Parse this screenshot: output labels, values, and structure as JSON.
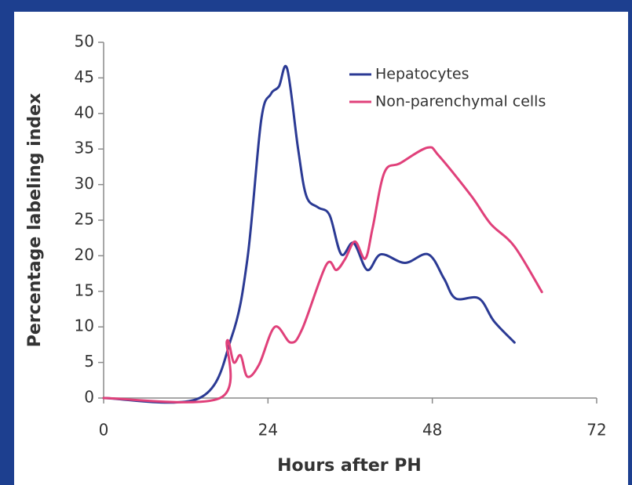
{
  "chart_data": {
    "type": "line",
    "xlabel": "Hours after PH",
    "ylabel": "Percentage labeling index",
    "xlim": [
      0,
      72
    ],
    "xticks": [
      0,
      24,
      48,
      72
    ],
    "ylim": [
      0,
      50
    ],
    "yticks": [
      0,
      5,
      10,
      15,
      20,
      25,
      30,
      35,
      40,
      45,
      50
    ],
    "grid": false,
    "legend": "upper right",
    "series": [
      {
        "name": "Hepatocytes",
        "color": "#2b3a94",
        "x": [
          0,
          14,
          18.7,
          21,
          23,
          24.4,
          25.6,
          26.8,
          28.4,
          29.6,
          31.3,
          33,
          34.7,
          36.5,
          38.5,
          40.5,
          44,
          47.4,
          49.7,
          51.4,
          54.8,
          57,
          60
        ],
        "values": [
          0,
          0,
          8.6,
          19.6,
          39,
          42.7,
          43.8,
          46.3,
          35,
          28.4,
          26.8,
          25.7,
          20.2,
          21.8,
          18,
          20.2,
          19,
          20.2,
          16.8,
          14,
          14,
          10.8,
          7.8
        ]
      },
      {
        "name": "Non-parenchymal cells",
        "color": "#e0407a",
        "x": [
          0,
          17,
          18,
          19,
          20,
          21,
          22.7,
          25,
          27.3,
          29,
          32.5,
          34,
          35.3,
          36.7,
          38.2,
          39.3,
          41,
          43.3,
          47.3,
          49,
          53.7,
          56.5,
          60,
          64
        ],
        "values": [
          0,
          0,
          8,
          5,
          6,
          3,
          4.7,
          10,
          7.8,
          9.7,
          18.7,
          18,
          19.6,
          22,
          19.6,
          24,
          31.7,
          33,
          35.2,
          34,
          28.4,
          24.5,
          21.3,
          14.9
        ]
      }
    ]
  }
}
